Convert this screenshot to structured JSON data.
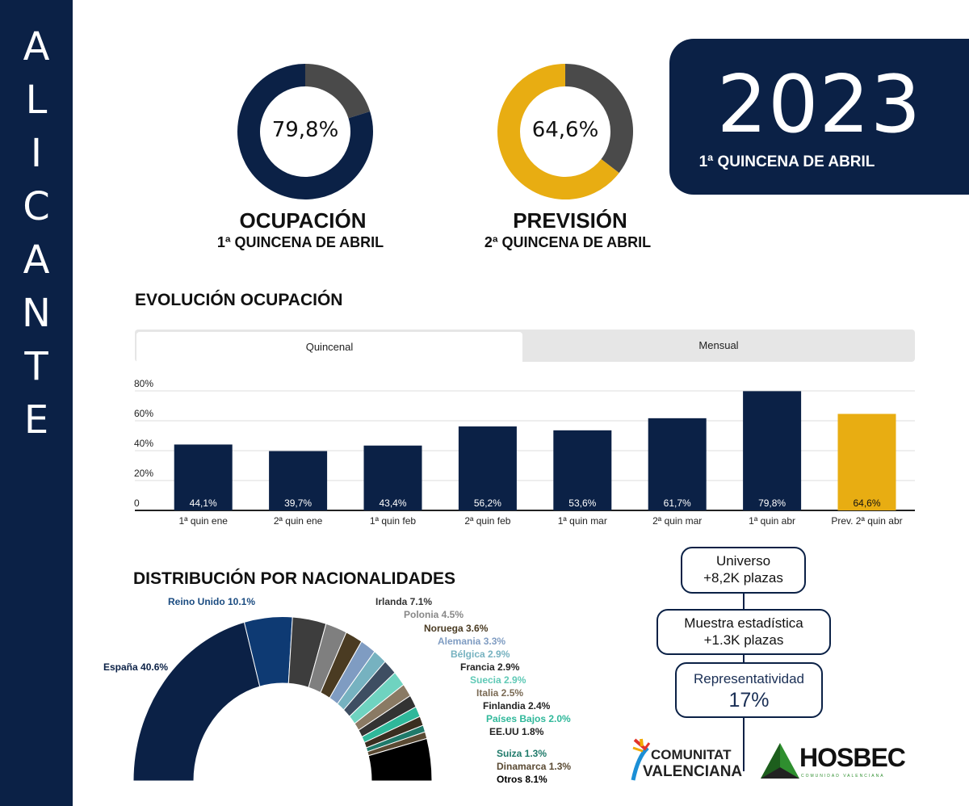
{
  "sidebar": {
    "letters": [
      "A",
      "L",
      "I",
      "C",
      "A",
      "N",
      "T",
      "E"
    ]
  },
  "year": {
    "value": "2023",
    "subtitle": "1ª QUINCENA DE ABRIL"
  },
  "gauges": [
    {
      "value": "79,8%",
      "percent": 79.8,
      "title": "OCUPACIÓN",
      "subtitle": "1ª QUINCENA DE ABRIL",
      "color": "#0b2146"
    },
    {
      "value": "64,6%",
      "percent": 64.6,
      "title": "PREVISIÓN",
      "subtitle": "2ª QUINCENA DE ABRIL",
      "color": "#e8ad12"
    }
  ],
  "evolution": {
    "title": "EVOLUCIÓN OCUPACIÓN",
    "tabs": [
      "Quincenal",
      "Mensual"
    ]
  },
  "nationalities_title": "DISTRIBUCIÓN POR NACIONALIDADES",
  "stats": {
    "universe": [
      "Universo",
      "+8,2K plazas"
    ],
    "sample": [
      "Muestra estadística",
      "+1.3K plazas"
    ],
    "repr": [
      "Representatividad",
      "17%"
    ]
  },
  "logos": {
    "cv": [
      "COMUNITAT",
      "VALENCIANA"
    ],
    "hosbec": "HOSBEC",
    "hosbec_sub": "COMUNIDAD VALENCIANA"
  },
  "chart_data": [
    {
      "type": "bar",
      "title": "EVOLUCIÓN OCUPACIÓN",
      "categories": [
        "1ª quin ene",
        "2ª quin ene",
        "1ª quin feb",
        "2ª quin feb",
        "1ª quin mar",
        "2ª quin mar",
        "1ª quin abr",
        "Prev. 2ª quin abr"
      ],
      "values": [
        44.1,
        39.7,
        43.4,
        56.2,
        53.6,
        61.7,
        79.8,
        64.6
      ],
      "labels": [
        "44,1%",
        "39,7%",
        "43,4%",
        "56,2%",
        "53,6%",
        "61,7%",
        "79,8%",
        "64,6%"
      ],
      "colors": [
        "#0b2146",
        "#0b2146",
        "#0b2146",
        "#0b2146",
        "#0b2146",
        "#0b2146",
        "#0b2146",
        "#e8ad12"
      ],
      "yticks": [
        "0",
        "20%",
        "40%",
        "60%",
        "80%"
      ],
      "ylim": [
        0,
        80
      ]
    },
    {
      "type": "pie",
      "title": "DISTRIBUCIÓN POR NACIONALIDADES",
      "slices": [
        {
          "name": "España",
          "value": 40.6,
          "label": "España 40.6%",
          "color": "#0b2146",
          "lc": "#0b2146"
        },
        {
          "name": "Reino Unido",
          "value": 10.1,
          "label": "Reino Unido 10.1%",
          "color": "#0e3a73",
          "lc": "#1a4b80"
        },
        {
          "name": "Irlanda",
          "value": 7.1,
          "label": "Irlanda 7.1%",
          "color": "#3d3d3d",
          "lc": "#333"
        },
        {
          "name": "Polonia",
          "value": 4.5,
          "label": "Polonia 4.5%",
          "color": "#7f7f7f",
          "lc": "#888"
        },
        {
          "name": "Noruega",
          "value": 3.6,
          "label": "Noruega 3.6%",
          "color": "#4a3b22",
          "lc": "#4a3b22"
        },
        {
          "name": "Alemania",
          "value": 3.3,
          "label": "Alemania 3.3%",
          "color": "#7f9cc2",
          "lc": "#7f9cc2"
        },
        {
          "name": "Bélgica",
          "value": 2.9,
          "label": "Bélgica 2.9%",
          "color": "#76b2c0",
          "lc": "#76b2c0"
        },
        {
          "name": "Francia",
          "value": 2.9,
          "label": "Francia 2.9%",
          "color": "#3e4e62",
          "lc": "#222"
        },
        {
          "name": "Suecia",
          "value": 2.9,
          "label": "Suecia 2.9%",
          "color": "#6fd3c0",
          "lc": "#5fc9b6"
        },
        {
          "name": "Italia",
          "value": 2.5,
          "label": "Italia 2.5%",
          "color": "#8a7a64",
          "lc": "#7a6a54"
        },
        {
          "name": "Finlandia",
          "value": 2.4,
          "label": "Finlandia 2.4%",
          "color": "#333",
          "lc": "#222"
        },
        {
          "name": "Países Bajos",
          "value": 2.0,
          "label": "Países Bajos 2.0%",
          "color": "#2fb89a",
          "lc": "#2fb89a"
        },
        {
          "name": "EE.UU",
          "value": 1.8,
          "label": "EE.UU 1.8%",
          "color": "#3a2e20",
          "lc": "#222"
        },
        {
          "name": "Suiza",
          "value": 1.3,
          "label": "Suiza 1.3%",
          "color": "#1f7a6a",
          "lc": "#1f7a6a"
        },
        {
          "name": "Dinamarca",
          "value": 1.3,
          "label": "Dinamarca 1.3%",
          "color": "#5a4a33",
          "lc": "#5a4a33"
        },
        {
          "name": "Otros",
          "value": 8.1,
          "label": "Otros 8.1%",
          "color": "#000",
          "lc": "#000"
        }
      ]
    }
  ]
}
